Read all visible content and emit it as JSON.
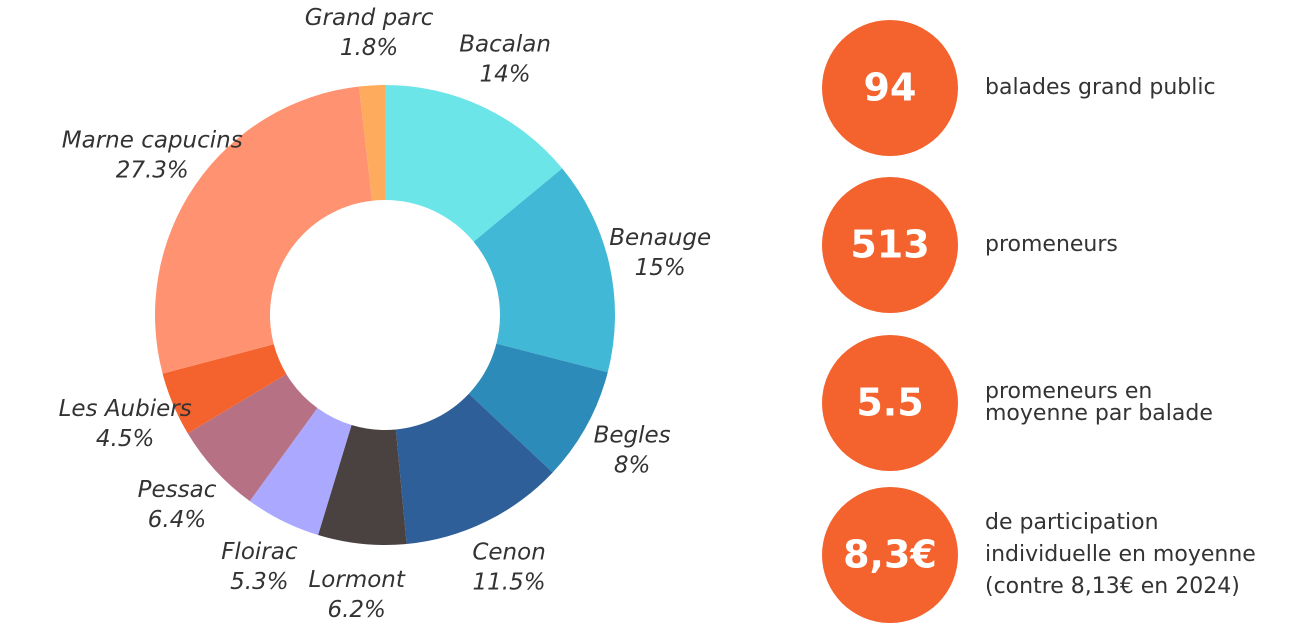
{
  "chart_data": {
    "type": "donut",
    "categories": [
      "Bacalan",
      "Benauge",
      "Begles",
      "Cenon",
      "Lormont",
      "Floirac",
      "Pessac",
      "Les Aubiers",
      "Marne capucins",
      "Grand parc"
    ],
    "values": [
      14,
      15,
      8,
      11.5,
      6.2,
      5.3,
      6.4,
      4.5,
      27.3,
      1.8
    ],
    "value_labels": [
      "14%",
      "15%",
      "8%",
      "11.5%",
      "6.2%",
      "5.3%",
      "6.4%",
      "4.5%",
      "27.3%",
      "1.8%"
    ],
    "colors": [
      "#6ce5e8",
      "#41b8d5",
      "#2d8bba",
      "#2f5f98",
      "#4a4141",
      "#aaa9ff",
      "#b77185",
      "#f4622d",
      "#ff9270",
      "#ffab5d"
    ]
  },
  "stats": [
    {
      "value": "94",
      "lines": [
        "balades grand public"
      ]
    },
    {
      "value": "513",
      "lines": [
        "promeneurs"
      ]
    },
    {
      "value": "5.5",
      "lines": [
        "promeneurs en",
        "moyenne par balade"
      ]
    },
    {
      "value": "8,3€",
      "lines": [
        "de participation",
        "individuelle en moyenne",
        "(contre 8,13€ en 2024)"
      ]
    }
  ]
}
